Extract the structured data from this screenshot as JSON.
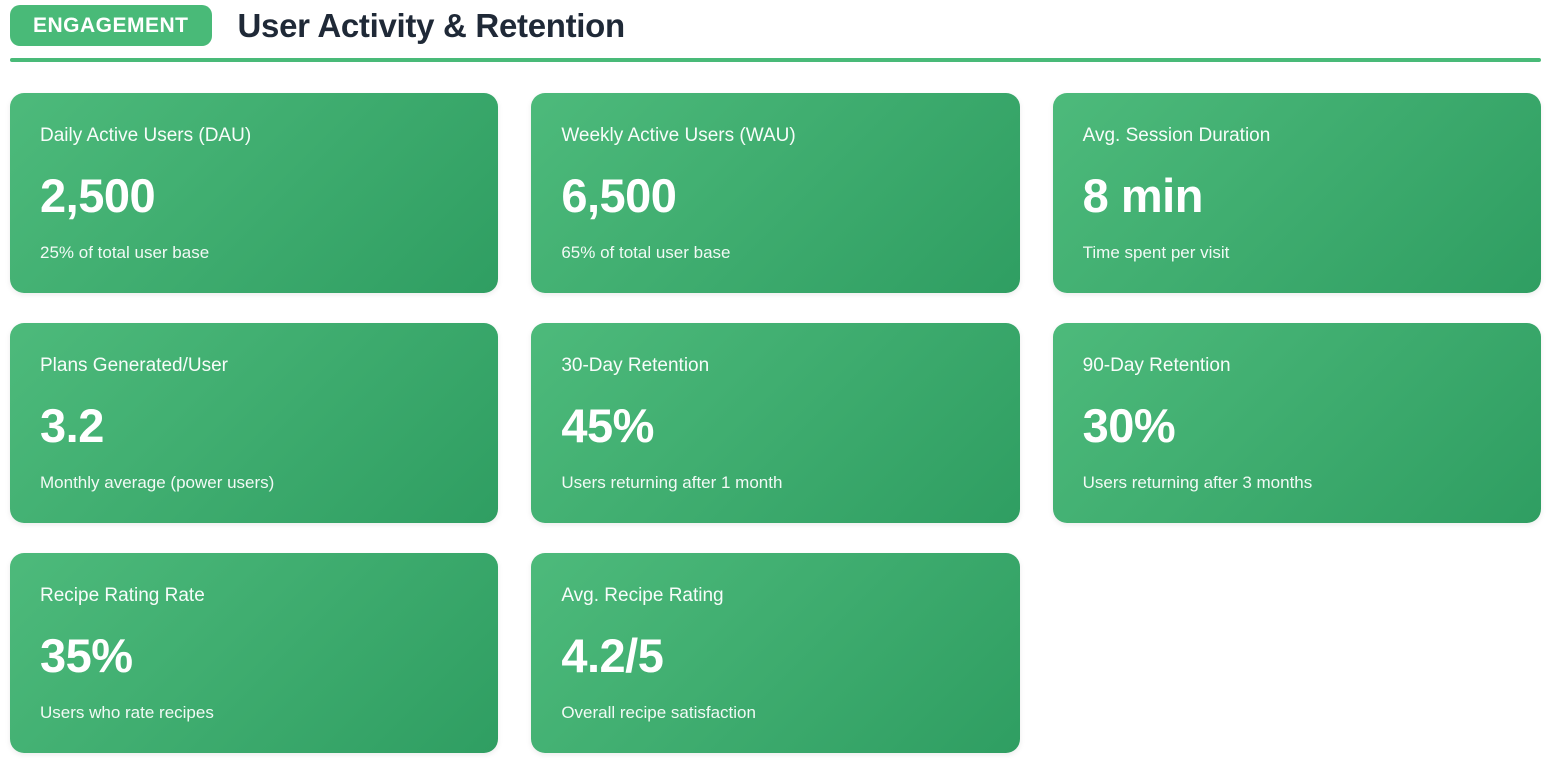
{
  "header": {
    "badge": "ENGAGEMENT",
    "title": "User Activity & Retention"
  },
  "colors": {
    "accent_green": "#49BA78",
    "card_gradient_start": "#4DBA7B",
    "card_gradient_end": "#2F9E62",
    "title_text": "#1F2937",
    "card_text": "#FFFFFF"
  },
  "cards": [
    {
      "label": "Daily Active Users (DAU)",
      "value": "2,500",
      "description": "25% of total user base"
    },
    {
      "label": "Weekly Active Users (WAU)",
      "value": "6,500",
      "description": "65% of total user base"
    },
    {
      "label": "Avg. Session Duration",
      "value": "8 min",
      "description": "Time spent per visit"
    },
    {
      "label": "Plans Generated/User",
      "value": "3.2",
      "description": "Monthly average (power users)"
    },
    {
      "label": "30-Day Retention",
      "value": "45%",
      "description": "Users returning after 1 month"
    },
    {
      "label": "90-Day Retention",
      "value": "30%",
      "description": "Users returning after 3 months"
    },
    {
      "label": "Recipe Rating Rate",
      "value": "35%",
      "description": "Users who rate recipes"
    },
    {
      "label": "Avg. Recipe Rating",
      "value": "4.2/5",
      "description": "Overall recipe satisfaction"
    }
  ]
}
